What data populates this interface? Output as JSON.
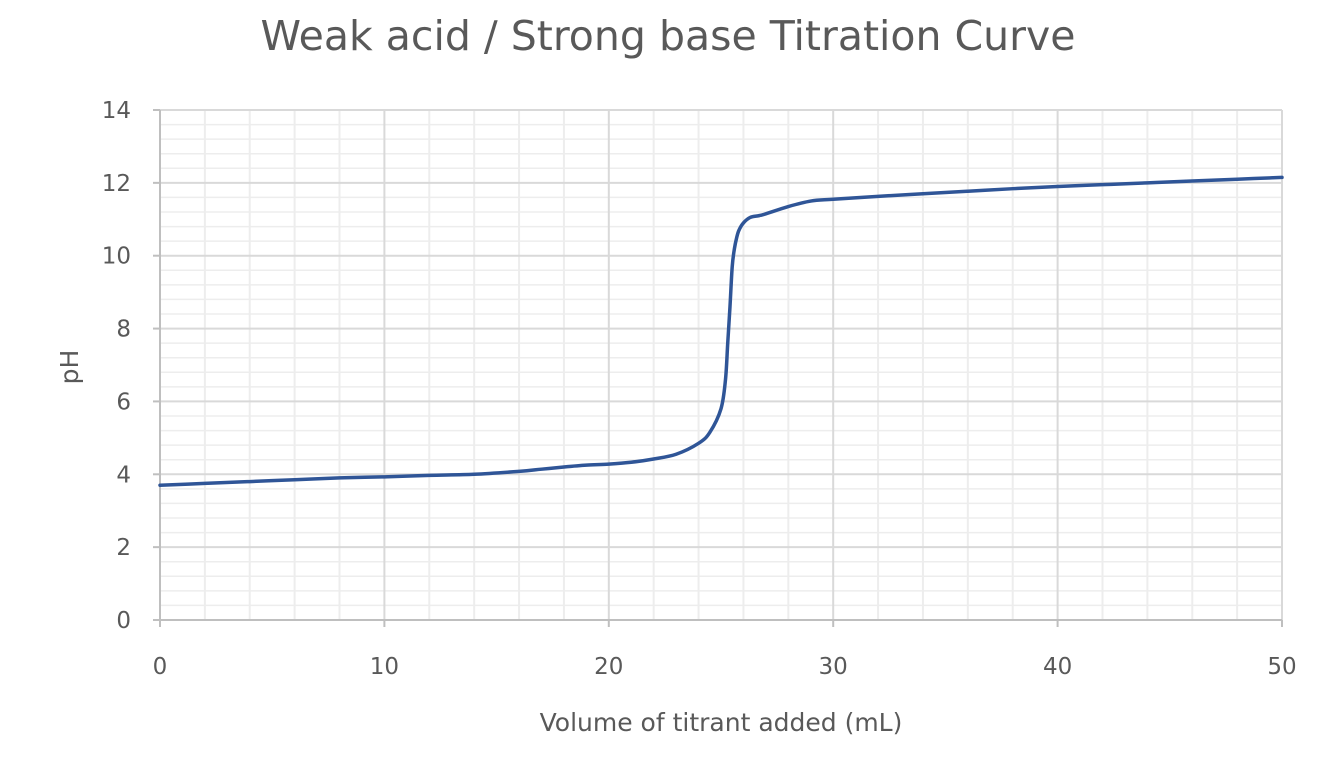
{
  "chart_data": {
    "type": "line",
    "title": "Weak acid / Strong base Titration Curve",
    "xlabel": "Volume of titrant added (mL)",
    "ylabel": "pH",
    "xlim": [
      0,
      50
    ],
    "ylim": [
      0,
      14
    ],
    "x_ticks": [
      0,
      10,
      20,
      30,
      40,
      50
    ],
    "y_ticks": [
      0,
      2,
      4,
      6,
      8,
      10,
      12,
      14
    ],
    "x_tick_labels": [
      "0",
      "10",
      "20",
      "30",
      "40",
      "50"
    ],
    "y_tick_labels": [
      "0",
      "2",
      "4",
      "6",
      "8",
      "10",
      "12",
      "14"
    ],
    "grid": true,
    "legend": "none",
    "series": [
      {
        "color": "#2f5597",
        "x": [
          0,
          2,
          4,
          6,
          8,
          10,
          12,
          14,
          16,
          17,
          18,
          19,
          20,
          21,
          22,
          23,
          24,
          24.5,
          25,
          25.2,
          25.3,
          25.4,
          25.5,
          25.6,
          25.7,
          25.8,
          26,
          26.3,
          26.7,
          27,
          28,
          29,
          30,
          32,
          34,
          36,
          38,
          40,
          42,
          44,
          46,
          48,
          50
        ],
        "y": [
          3.7,
          3.75,
          3.8,
          3.85,
          3.9,
          3.93,
          3.97,
          4.0,
          4.08,
          4.14,
          4.2,
          4.25,
          4.28,
          4.33,
          4.42,
          4.55,
          4.85,
          5.15,
          5.8,
          6.6,
          7.6,
          8.6,
          9.7,
          10.2,
          10.5,
          10.7,
          10.9,
          11.05,
          11.1,
          11.15,
          11.35,
          11.5,
          11.55,
          11.63,
          11.7,
          11.77,
          11.84,
          11.9,
          11.95,
          12.0,
          12.05,
          12.1,
          12.15
        ]
      }
    ]
  }
}
